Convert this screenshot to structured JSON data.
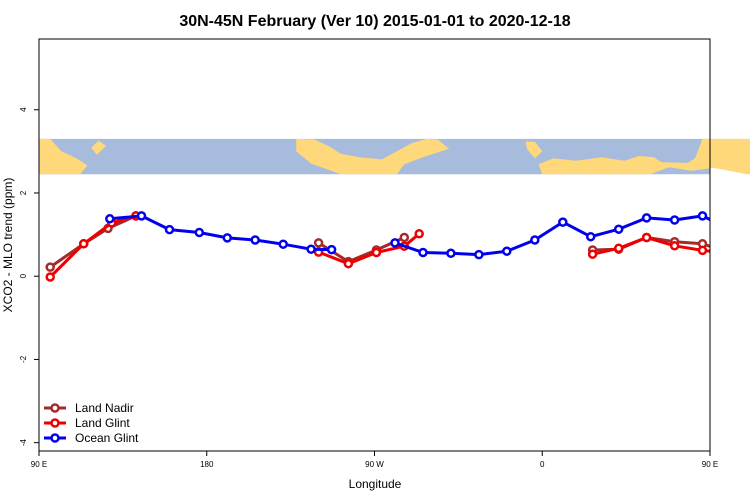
{
  "chart_data": {
    "type": "line",
    "title": "30N-45N February (Ver 10)   2015-01-01 to 2020-12-18",
    "xlabel": "Longitude",
    "ylabel": "XCO2 - MLO trend (ppm)",
    "xlim": [
      90,
      450
    ],
    "ylim": [
      -4.2,
      5.7
    ],
    "x_ticks": [
      {
        "value": 90,
        "label": "90 E"
      },
      {
        "value": 180,
        "label": "180"
      },
      {
        "value": 270,
        "label": "90 W"
      },
      {
        "value": 360,
        "label": "0"
      },
      {
        "value": 450,
        "label": "90 E"
      },
      {
        "value": 540,
        "label": "180"
      }
    ],
    "y_ticks": [
      {
        "value": -4,
        "label": "-4"
      },
      {
        "value": -2,
        "label": "-2"
      },
      {
        "value": 0,
        "label": "0"
      },
      {
        "value": 2,
        "label": "2"
      },
      {
        "value": 4,
        "label": "4"
      }
    ],
    "map_strip": {
      "ymin": 2.45,
      "ymax": 3.3,
      "ocean_color": "#a7bcdc",
      "land_color": "#fed87a"
    },
    "legend_position": "bottom-left",
    "series": [
      {
        "name": "Land Nadir",
        "color": "#a52a2a",
        "segments": [
          {
            "x": [
              96,
              114,
              127,
              142
            ],
            "y": [
              0.22,
              0.78,
              1.15,
              1.45
            ]
          },
          {
            "x": [
              240,
              256,
              271,
              286
            ],
            "y": [
              0.8,
              0.35,
              0.63,
              0.93
            ]
          },
          {
            "x": [
              387,
              401,
              416,
              431,
              446,
              461
            ],
            "y": [
              0.63,
              0.65,
              0.93,
              0.83,
              0.78,
              0.55
            ]
          },
          {
            "x": [
              475,
              490,
              505,
              520,
              535
            ],
            "y": [
              -0.1,
              0.22,
              0.78,
              1.15,
              1.45
            ]
          }
        ]
      },
      {
        "name": "Land Glint",
        "color": "#ee0000",
        "segments": [
          {
            "x": [
              96,
              114,
              129,
              142
            ],
            "y": [
              -0.02,
              0.78,
              1.28,
              1.45
            ]
          },
          {
            "x": [
              240,
              256,
              271,
              286,
              294
            ],
            "y": [
              0.58,
              0.3,
              0.57,
              0.72,
              1.02
            ]
          },
          {
            "x": [
              387,
              401,
              416,
              431,
              446,
              461
            ],
            "y": [
              0.53,
              0.67,
              0.93,
              0.73,
              0.62,
              0.55
            ]
          },
          {
            "x": [
              475,
              490,
              505,
              520,
              535
            ],
            "y": [
              -0.22,
              0.0,
              0.75,
              1.3,
              1.45
            ]
          }
        ]
      },
      {
        "name": "Ocean Glint",
        "color": "#0000ee",
        "segments": [
          {
            "x": [
              128,
              145,
              160,
              176,
              191,
              206,
              221,
              236,
              247
            ],
            "y": [
              1.38,
              1.45,
              1.12,
              1.05,
              0.92,
              0.87,
              0.77,
              0.65,
              0.64
            ]
          },
          {
            "x": [
              281,
              296,
              311,
              326,
              341,
              356,
              371,
              386,
              401,
              416,
              431,
              446,
              461
            ],
            "y": [
              0.8,
              0.57,
              0.55,
              0.52,
              0.6,
              0.87,
              1.3,
              0.95,
              1.13,
              1.4,
              1.35,
              1.45,
              1.12
            ]
          },
          {
            "x": [
              521,
              531,
              546,
              561,
              576,
              591
            ],
            "y": [
              1.35,
              1.45,
              1.1,
              1.05,
              0.9,
              0.88
            ]
          }
        ]
      }
    ]
  }
}
